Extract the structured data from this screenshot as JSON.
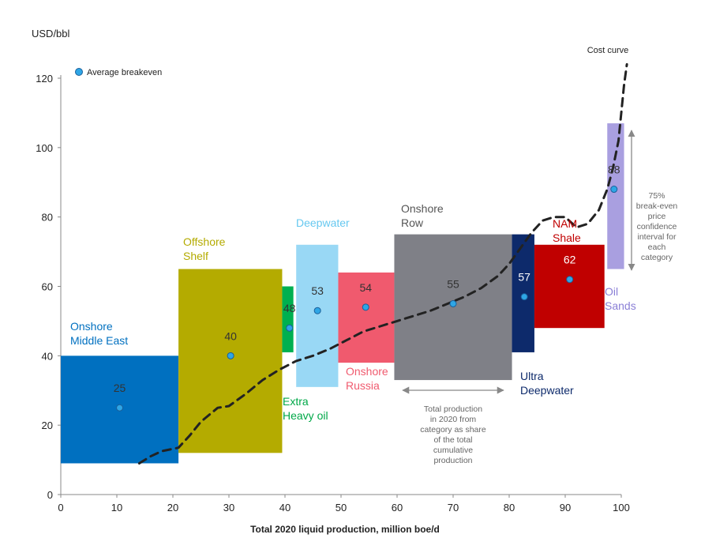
{
  "chart_data": {
    "type": "cost-curve",
    "ylabel": "USD/bbl",
    "xlabel": "Total 2020 liquid production, million boe/d",
    "xlim": [
      0,
      100
    ],
    "ylim": [
      0,
      120
    ],
    "x_ticks": [
      "0",
      "10",
      "20",
      "30",
      "40",
      "50",
      "60",
      "70",
      "80",
      "90",
      "100"
    ],
    "y_ticks": [
      "0",
      "20",
      "40",
      "60",
      "80",
      "100",
      "120"
    ],
    "legend": {
      "label": "Average breakeven",
      "placement": "top-left"
    },
    "categories": [
      {
        "label": [
          "Onshore",
          "Middle East"
        ],
        "x0": 0,
        "x1": 21,
        "y_low": 9,
        "y_high": 40,
        "avg": 25,
        "avg_x": 10.5,
        "color": "#0070c0",
        "label_color": "#0070c0",
        "value_label": "25",
        "value_color": "#333333"
      },
      {
        "label": [
          "Offshore",
          "Shelf"
        ],
        "x0": 21,
        "x1": 39.5,
        "y_low": 12,
        "y_high": 65,
        "avg": 40,
        "avg_x": 30.3,
        "color": "#b4ab00",
        "label_color": "#b4ab00",
        "value_label": "40",
        "value_color": "#333333"
      },
      {
        "label": [
          "Extra",
          "Heavy oil"
        ],
        "x0": 39.5,
        "x1": 41.5,
        "y_low": 41,
        "y_high": 60,
        "avg": 48,
        "avg_x": 40.8,
        "color": "#00b050",
        "label_color": "#00a848",
        "value_label": "48",
        "value_color": "#333333"
      },
      {
        "label": [
          "Deepwater"
        ],
        "x0": 42,
        "x1": 49.5,
        "y_low": 31,
        "y_high": 72,
        "avg": 53,
        "avg_x": 45.8,
        "color": "#99d8f5",
        "label_color": "#66c8f0",
        "value_label": "53",
        "value_color": "#333333"
      },
      {
        "label": [
          "Onshore",
          "Russia"
        ],
        "x0": 49.5,
        "x1": 59.5,
        "y_low": 38,
        "y_high": 64,
        "avg": 54,
        "avg_x": 54.4,
        "color": "#f05a6e",
        "label_color": "#f05a6e",
        "value_label": "54",
        "value_color": "#333333"
      },
      {
        "label": [
          "Onshore",
          "Row"
        ],
        "x0": 59.5,
        "x1": 80.5,
        "y_low": 33,
        "y_high": 75,
        "avg": 55,
        "avg_x": 70,
        "color": "#7f8087",
        "label_color": "#555555",
        "value_label": "55",
        "value_color": "#333333"
      },
      {
        "label": [
          "Ultra",
          "Deepwater"
        ],
        "x0": 80.5,
        "x1": 84.5,
        "y_low": 41,
        "y_high": 75,
        "avg": 57,
        "avg_x": 82.7,
        "color": "#0d2a6b",
        "label_color": "#0d2a6b",
        "value_label": "57",
        "value_color": "#ffffff"
      },
      {
        "label": [
          "NAM",
          "Shale"
        ],
        "x0": 84.5,
        "x1": 97,
        "y_low": 48,
        "y_high": 72,
        "avg": 62,
        "avg_x": 90.8,
        "color": "#c00000",
        "label_color": "#c00000",
        "value_label": "62",
        "value_color": "#ffffff"
      },
      {
        "label": [
          "Oil",
          "Sands"
        ],
        "x0": 97.5,
        "x1": 100.5,
        "y_low": 65,
        "y_high": 107,
        "avg": 88,
        "avg_x": 98.7,
        "color": "#a99fe0",
        "label_color": "#8a7fd6",
        "value_label": "88",
        "value_color": "#333333"
      }
    ],
    "cost_curve": {
      "label": "Cost curve",
      "points": [
        [
          14,
          9
        ],
        [
          16,
          11
        ],
        [
          18,
          12.5
        ],
        [
          21,
          13.5
        ],
        [
          23,
          17
        ],
        [
          25,
          21
        ],
        [
          28,
          25
        ],
        [
          30,
          25.5
        ],
        [
          33,
          29
        ],
        [
          36,
          33
        ],
        [
          39,
          36
        ],
        [
          42,
          38.5
        ],
        [
          45,
          40
        ],
        [
          48,
          42
        ],
        [
          51,
          44.5
        ],
        [
          54,
          47
        ],
        [
          57,
          48.5
        ],
        [
          60,
          50
        ],
        [
          63,
          51.5
        ],
        [
          66,
          53
        ],
        [
          69,
          55
        ],
        [
          72,
          57
        ],
        [
          75,
          59.5
        ],
        [
          78,
          63
        ],
        [
          80,
          66.5
        ],
        [
          82,
          71
        ],
        [
          84,
          75.5
        ],
        [
          86,
          79
        ],
        [
          88,
          80
        ],
        [
          90,
          80
        ],
        [
          92,
          77
        ],
        [
          94,
          78
        ],
        [
          96,
          82
        ],
        [
          97.5,
          88
        ],
        [
          98.5,
          94
        ],
        [
          99.5,
          102
        ],
        [
          100,
          110
        ],
        [
          100.5,
          118
        ],
        [
          101,
          124
        ]
      ]
    },
    "annotations": {
      "production_note": [
        "Total production",
        "in 2020 from",
        "category as share",
        "of the total",
        "cumulative",
        "production"
      ],
      "confidence_note": [
        "75%",
        "break-even",
        "price",
        "confidence",
        "interval for",
        "each",
        "category"
      ]
    }
  }
}
